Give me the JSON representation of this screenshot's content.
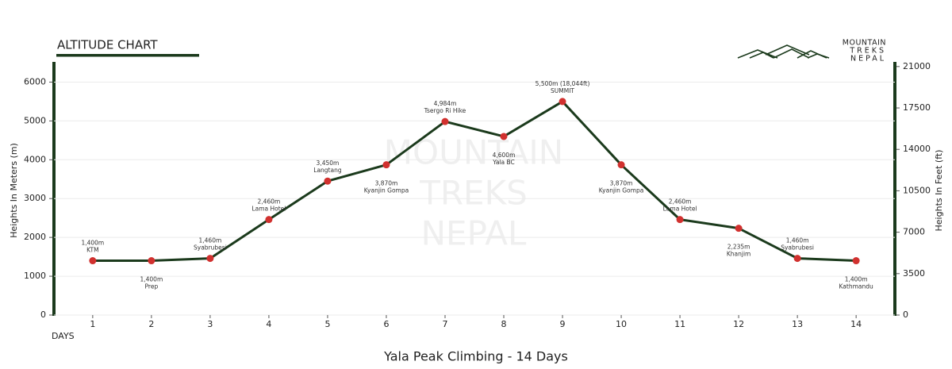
{
  "chart_data": {
    "type": "line",
    "title": "ALTITUDE CHART",
    "brand": [
      "MOUNTAIN",
      "TREKS",
      "NEPAL"
    ],
    "x_label": "DAYS",
    "subtitle": "Yala Peak Climbing - 14 Days",
    "y_label": "Heights In Meters (m)",
    "y2_label": "Heights In Feet (ft)",
    "x": [
      1,
      2,
      3,
      4,
      5,
      6,
      7,
      8,
      9,
      10,
      11,
      12,
      13,
      14
    ],
    "xlim": [
      0.34,
      14.66
    ],
    "xticks": [
      1,
      2,
      3,
      4,
      5,
      6,
      7,
      8,
      9,
      10,
      11,
      12,
      13,
      14
    ],
    "ylim": [
      0,
      6500
    ],
    "yticks": [
      0,
      1000,
      2000,
      3000,
      4000,
      5000,
      6000
    ],
    "y2lim": [
      0,
      21325
    ],
    "y2ticks": [
      0,
      3500,
      7000,
      10500,
      14000,
      17500,
      21000
    ],
    "grid": true,
    "series": [
      {
        "color": "#1b3a1c",
        "marker_color": "#d1312f",
        "values": [
          1400,
          1400,
          1460,
          2460,
          3450,
          3870,
          4984,
          4600,
          5500,
          3870,
          2460,
          2235,
          1460,
          1400
        ],
        "value_labels": [
          "1,400m",
          "1,400m",
          "1,460m",
          "2,460m",
          "3,450m",
          "3,870m",
          "4,984m",
          "4,600m",
          "5,500m (18,044ft)",
          "3,870m",
          "2,460m",
          "2,235m",
          "1,460m",
          "1,400m"
        ],
        "point_labels": [
          "KTM",
          "Prep",
          "Syabrubesi",
          "Lama Hotel",
          "Langtang",
          "Kyanjin Gompa",
          "Tsergo Ri Hike",
          "Yala BC",
          "SUMMIT",
          "Kyanjin Gompa",
          "Lama Hotel",
          "Khanjim",
          "Syabrubesi",
          "Kathmandu"
        ]
      }
    ]
  }
}
